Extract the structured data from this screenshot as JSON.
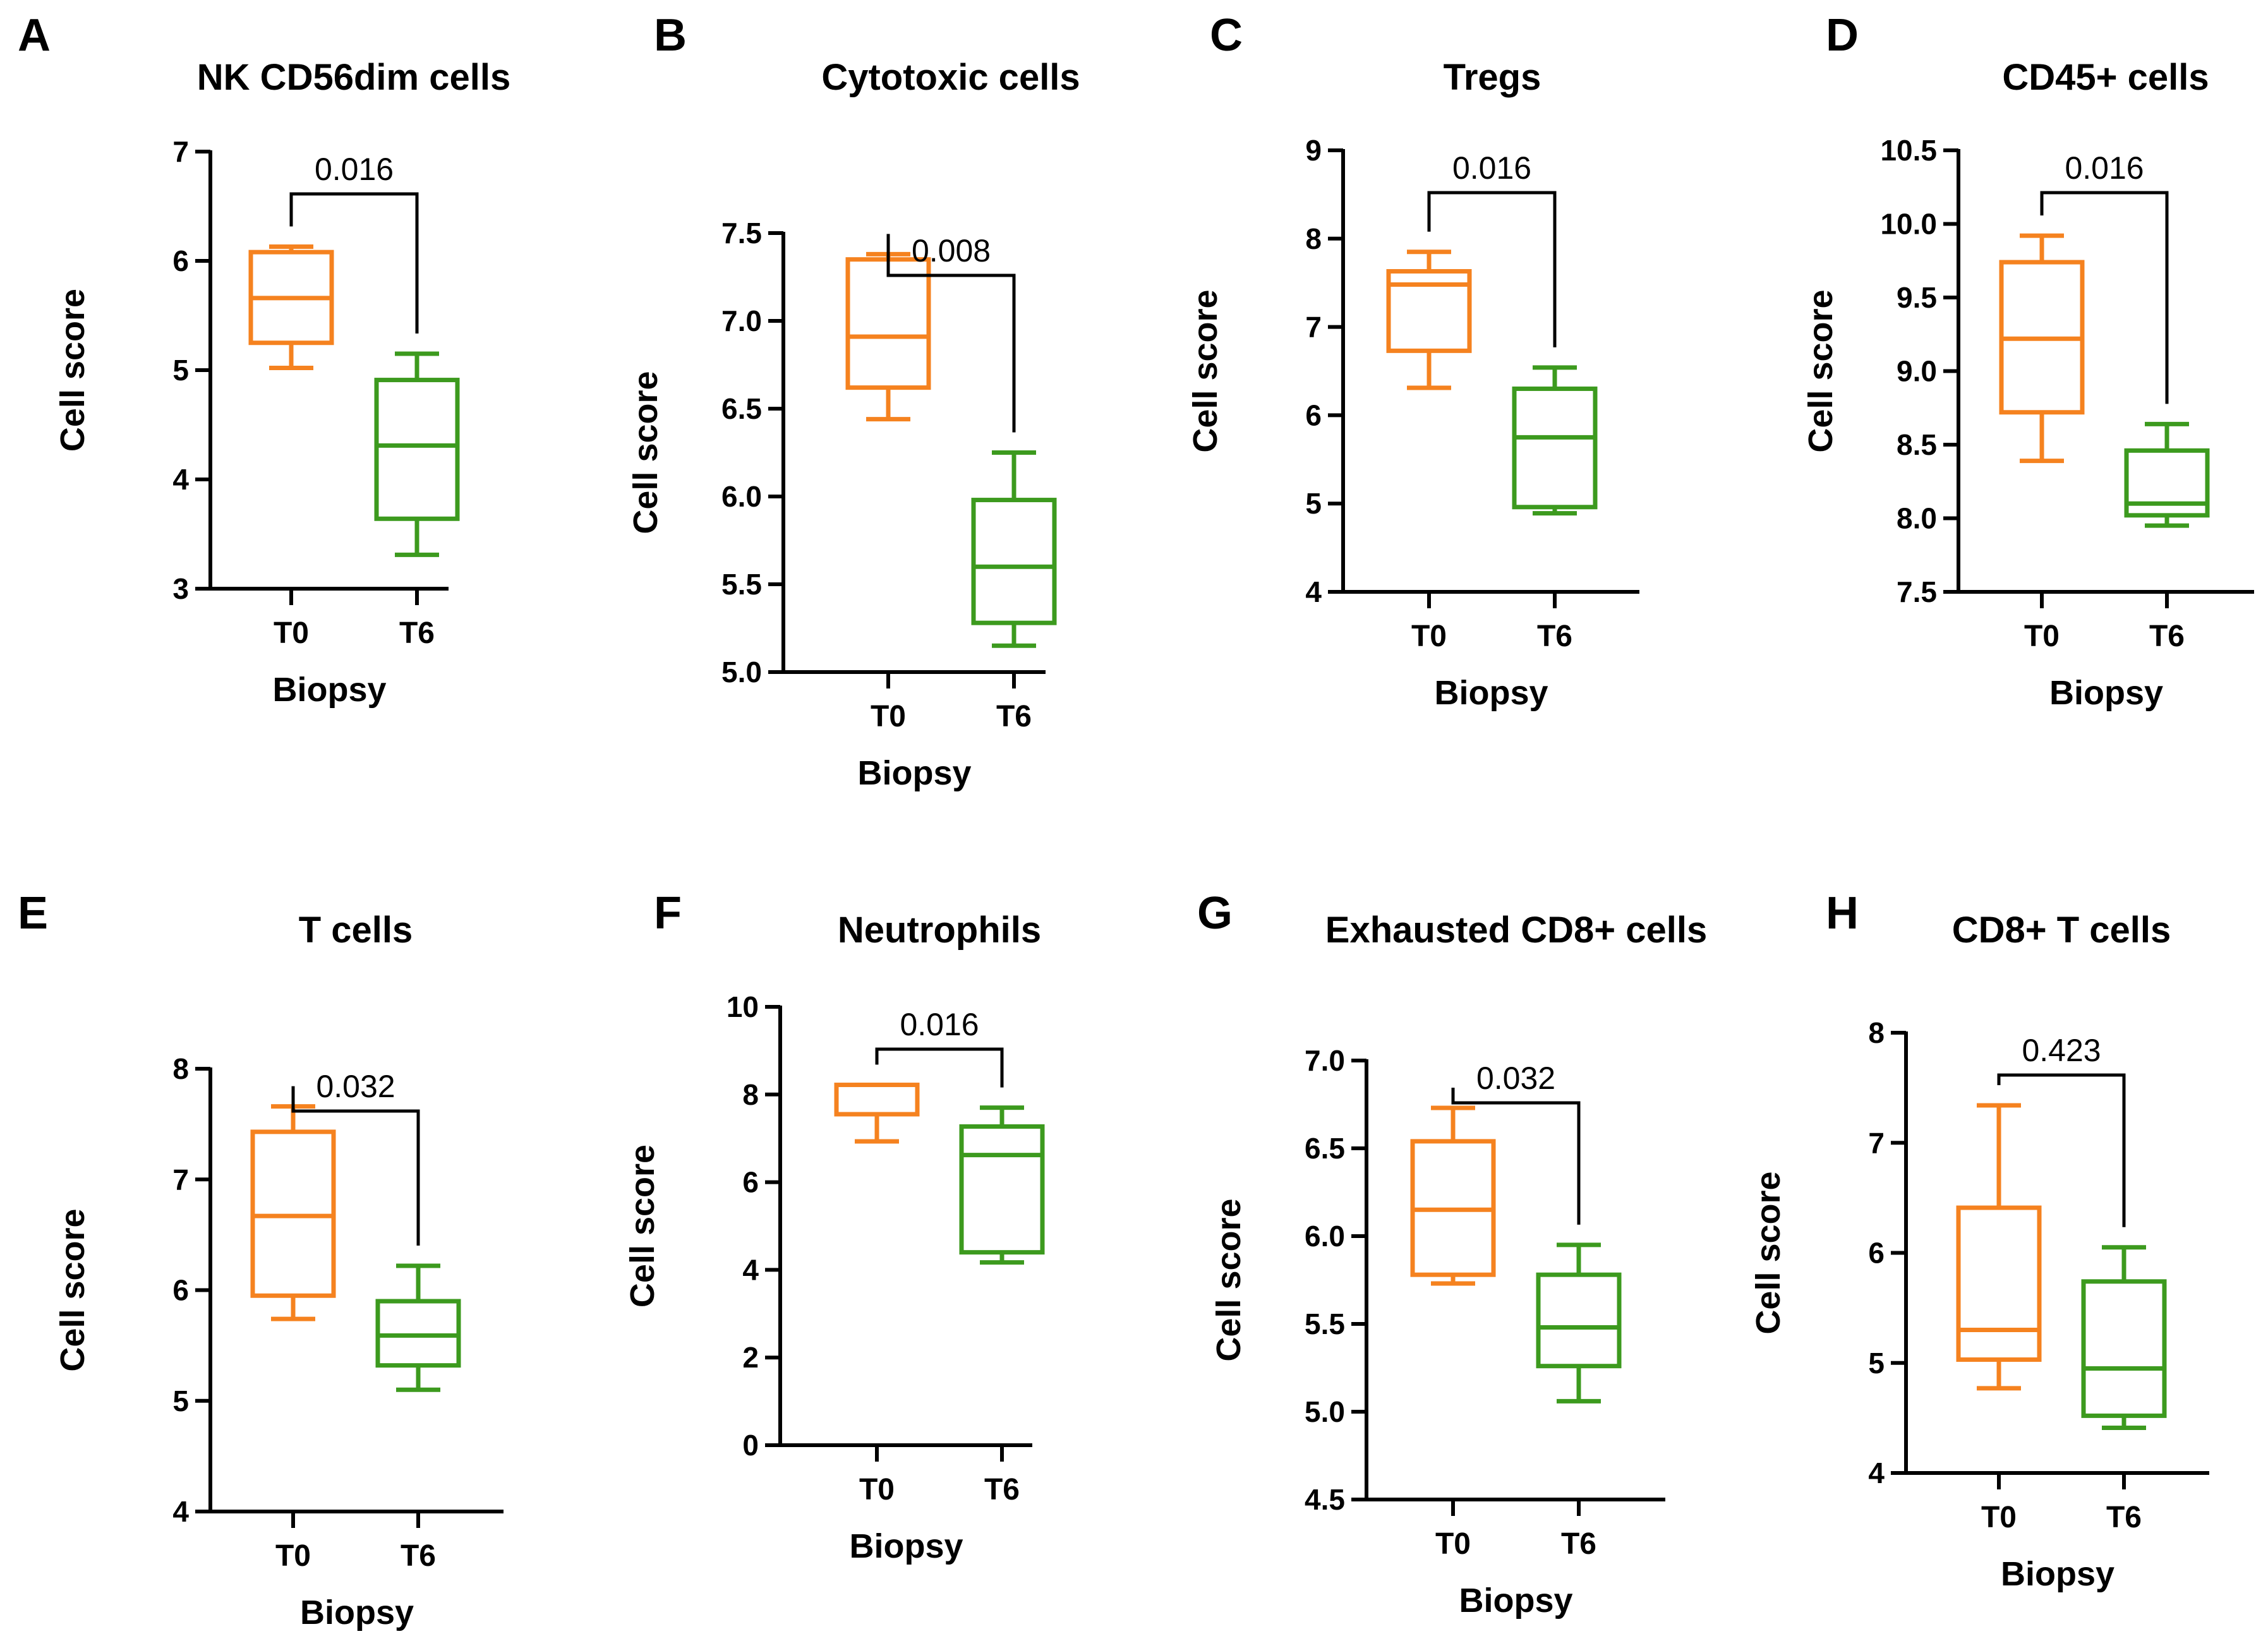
{
  "figure": {
    "colors": {
      "T0": "#F5821F",
      "T6": "#3C9A1E",
      "axis": "#000000"
    }
  },
  "chart_data": [
    {
      "panel": "A",
      "type": "box",
      "title": "NK CD56dim cells",
      "xlabel": "Biopsy",
      "ylabel": "Cell score",
      "categories": [
        "T0",
        "T6"
      ],
      "ylim": [
        3,
        7
      ],
      "yticks": [
        3,
        4,
        5,
        6,
        7
      ],
      "ytick_labels": [
        "3",
        "4",
        "5",
        "6",
        "7"
      ],
      "boxes": [
        {
          "group": "T0",
          "min": 5.02,
          "q1": 5.25,
          "median": 5.66,
          "q3": 6.08,
          "max": 6.13
        },
        {
          "group": "T6",
          "min": 3.31,
          "q1": 3.64,
          "median": 4.31,
          "q3": 4.91,
          "max": 5.15
        }
      ],
      "p_value": "0.016"
    },
    {
      "panel": "B",
      "type": "box",
      "title": "Cytotoxic cells",
      "xlabel": "Biopsy",
      "ylabel": "Cell score",
      "categories": [
        "T0",
        "T6"
      ],
      "ylim": [
        5.0,
        7.5
      ],
      "yticks": [
        5.0,
        5.5,
        6.0,
        6.5,
        7.0,
        7.5
      ],
      "ytick_labels": [
        "5.0",
        "5.5",
        "6.0",
        "6.5",
        "7.0",
        "7.5"
      ],
      "boxes": [
        {
          "group": "T0",
          "min": 6.44,
          "q1": 6.62,
          "median": 6.91,
          "q3": 7.35,
          "max": 7.38
        },
        {
          "group": "T6",
          "min": 5.15,
          "q1": 5.28,
          "median": 5.6,
          "q3": 5.98,
          "max": 6.25
        }
      ],
      "p_value": "0.008"
    },
    {
      "panel": "C",
      "type": "box",
      "title": "Tregs",
      "xlabel": "Biopsy",
      "ylabel": "Cell score",
      "categories": [
        "T0",
        "T6"
      ],
      "ylim": [
        4,
        9
      ],
      "yticks": [
        4,
        5,
        6,
        7,
        8,
        9
      ],
      "ytick_labels": [
        "4",
        "5",
        "6",
        "7",
        "8",
        "9"
      ],
      "boxes": [
        {
          "group": "T0",
          "min": 6.31,
          "q1": 6.73,
          "median": 7.48,
          "q3": 7.63,
          "max": 7.85
        },
        {
          "group": "T6",
          "min": 4.89,
          "q1": 4.96,
          "median": 5.75,
          "q3": 6.3,
          "max": 6.54
        }
      ],
      "p_value": "0.016"
    },
    {
      "panel": "D",
      "type": "box",
      "title": "CD45+ cells",
      "xlabel": "Biopsy",
      "ylabel": "Cell score",
      "categories": [
        "T0",
        "T6"
      ],
      "ylim": [
        7.5,
        10.5
      ],
      "yticks": [
        7.5,
        8.0,
        8.5,
        9.0,
        9.5,
        10.0,
        10.5
      ],
      "ytick_labels": [
        "7.5",
        "8.0",
        "8.5",
        "9.0",
        "9.5",
        "10.0",
        "10.5"
      ],
      "boxes": [
        {
          "group": "T0",
          "min": 8.39,
          "q1": 8.72,
          "median": 9.22,
          "q3": 9.74,
          "max": 9.92
        },
        {
          "group": "T6",
          "min": 7.95,
          "q1": 8.02,
          "median": 8.1,
          "q3": 8.46,
          "max": 8.64
        }
      ],
      "p_value": "0.016"
    },
    {
      "panel": "E",
      "type": "box",
      "title": "T cells",
      "xlabel": "Biopsy",
      "ylabel": "Cell score",
      "categories": [
        "T0",
        "T6"
      ],
      "ylim": [
        4,
        8
      ],
      "yticks": [
        4,
        5,
        6,
        7,
        8
      ],
      "ytick_labels": [
        "4",
        "5",
        "6",
        "7",
        "8"
      ],
      "boxes": [
        {
          "group": "T0",
          "min": 5.74,
          "q1": 5.95,
          "median": 6.67,
          "q3": 7.43,
          "max": 7.66
        },
        {
          "group": "T6",
          "min": 5.1,
          "q1": 5.32,
          "median": 5.59,
          "q3": 5.9,
          "max": 6.22
        }
      ],
      "p_value": "0.032"
    },
    {
      "panel": "F",
      "type": "box",
      "title": "Neutrophils",
      "xlabel": "Biopsy",
      "ylabel": "Cell score",
      "categories": [
        "T0",
        "T6"
      ],
      "ylim": [
        0,
        10
      ],
      "yticks": [
        0,
        2,
        4,
        6,
        8,
        10
      ],
      "ytick_labels": [
        "0",
        "2",
        "4",
        "6",
        "8",
        "10"
      ],
      "boxes": [
        {
          "group": "T0",
          "min": 6.93,
          "q1": 7.55,
          "median": 7.55,
          "q3": 8.22,
          "max": 8.22
        },
        {
          "group": "T6",
          "min": 4.17,
          "q1": 4.4,
          "median": 6.62,
          "q3": 7.27,
          "max": 7.7
        }
      ],
      "p_value": "0.016"
    },
    {
      "panel": "G",
      "type": "box",
      "title": "Exhausted CD8+ cells",
      "xlabel": "Biopsy",
      "ylabel": "Cell score",
      "categories": [
        "T0",
        "T6"
      ],
      "ylim": [
        4.5,
        7.0
      ],
      "yticks": [
        4.5,
        5.0,
        5.5,
        6.0,
        6.5,
        7.0
      ],
      "ytick_labels": [
        "4.5",
        "5.0",
        "5.5",
        "6.0",
        "6.5",
        "7.0"
      ],
      "boxes": [
        {
          "group": "T0",
          "min": 5.73,
          "q1": 5.78,
          "median": 6.15,
          "q3": 6.54,
          "max": 6.73
        },
        {
          "group": "T6",
          "min": 5.06,
          "q1": 5.26,
          "median": 5.48,
          "q3": 5.78,
          "max": 5.95
        }
      ],
      "p_value": "0.032"
    },
    {
      "panel": "H",
      "type": "box",
      "title": "CD8+ T cells",
      "xlabel": "Biopsy",
      "ylabel": "Cell score",
      "categories": [
        "T0",
        "T6"
      ],
      "ylim": [
        4,
        8
      ],
      "yticks": [
        4,
        5,
        6,
        7,
        8
      ],
      "ytick_labels": [
        "4",
        "5",
        "6",
        "7",
        "8"
      ],
      "boxes": [
        {
          "group": "T0",
          "min": 4.77,
          "q1": 5.03,
          "median": 5.3,
          "q3": 6.41,
          "max": 7.34
        },
        {
          "group": "T6",
          "min": 4.41,
          "q1": 4.52,
          "median": 4.95,
          "q3": 5.74,
          "max": 6.05
        }
      ],
      "p_value": "0.423"
    }
  ]
}
